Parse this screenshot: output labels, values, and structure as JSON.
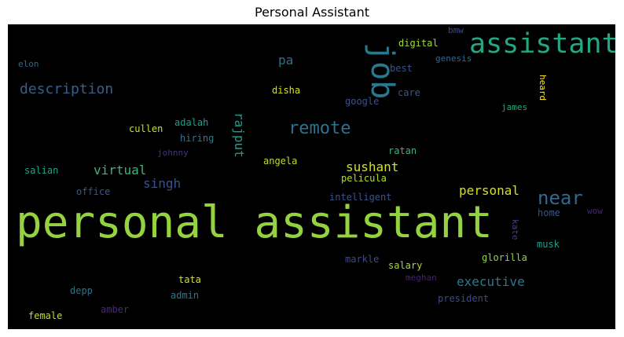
{
  "title": "Personal Assistant",
  "words": [
    {
      "text": "personal assistant",
      "color": "#94d33f"
    },
    {
      "text": "assistant",
      "color": "#23a883"
    },
    {
      "text": "job",
      "color": "#2a788e"
    },
    {
      "text": "remote",
      "color": "#2c728e"
    },
    {
      "text": "near",
      "color": "#31688e"
    },
    {
      "text": "description",
      "color": "#355f8d"
    },
    {
      "text": "executive",
      "color": "#2a788e"
    },
    {
      "text": "sushant",
      "color": "#d2e21b"
    },
    {
      "text": "personal",
      "color": "#d2e21b"
    },
    {
      "text": "virtual",
      "color": "#35b779"
    },
    {
      "text": "singh",
      "color": "#3b528b"
    },
    {
      "text": "rajput",
      "color": "#1f9e89"
    },
    {
      "text": "pa",
      "color": "#2c728e"
    },
    {
      "text": "digital",
      "color": "#a0da39"
    },
    {
      "text": "bmw",
      "color": "#3e4989"
    },
    {
      "text": "genesis",
      "color": "#31688e"
    },
    {
      "text": "best",
      "color": "#3b528b"
    },
    {
      "text": "care",
      "color": "#38598c"
    },
    {
      "text": "heard",
      "color": "#fde725"
    },
    {
      "text": "james",
      "color": "#22a884"
    },
    {
      "text": "google",
      "color": "#3b528b"
    },
    {
      "text": "disha",
      "color": "#d2e21b"
    },
    {
      "text": "elon",
      "color": "#31688e"
    },
    {
      "text": "cullen",
      "color": "#c8e020"
    },
    {
      "text": "adalah",
      "color": "#1f9e89"
    },
    {
      "text": "hiring",
      "color": "#2a788e"
    },
    {
      "text": "johnny",
      "color": "#46327e"
    },
    {
      "text": "angela",
      "color": "#bddf26"
    },
    {
      "text": "ratan",
      "color": "#35b779"
    },
    {
      "text": "pelicula",
      "color": "#b5de2b"
    },
    {
      "text": "salian",
      "color": "#1fa187"
    },
    {
      "text": "office",
      "color": "#38598c"
    },
    {
      "text": "intelligent",
      "color": "#3b528b"
    },
    {
      "text": "wow",
      "color": "#482475"
    },
    {
      "text": "home",
      "color": "#3b528b"
    },
    {
      "text": "kate",
      "color": "#414487"
    },
    {
      "text": "musk",
      "color": "#1f9e89"
    },
    {
      "text": "markle",
      "color": "#3e4989"
    },
    {
      "text": "salary",
      "color": "#a8db34"
    },
    {
      "text": "glorilla",
      "color": "#90d743"
    },
    {
      "text": "meghan",
      "color": "#482173"
    },
    {
      "text": "tata",
      "color": "#d2e21b"
    },
    {
      "text": "depp",
      "color": "#2c728e"
    },
    {
      "text": "admin",
      "color": "#2a788e"
    },
    {
      "text": "president",
      "color": "#3e4989"
    },
    {
      "text": "amber",
      "color": "#482878"
    },
    {
      "text": "female",
      "color": "#c2df23"
    }
  ]
}
